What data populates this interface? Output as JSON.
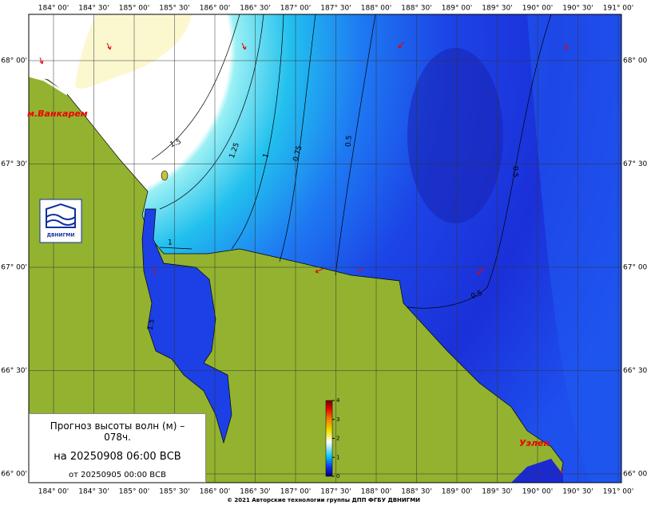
{
  "map": {
    "longitudes": [
      "184° 00'",
      "184° 30'",
      "185° 00'",
      "185° 30'",
      "186° 00'",
      "186° 30'",
      "187° 00'",
      "187° 30'",
      "188° 00'",
      "188° 30'",
      "189° 00'",
      "189° 30'",
      "190° 00'",
      "190° 30'",
      "191° 00'"
    ],
    "latitudes": [
      "68° 00'",
      "67° 30'",
      "67° 00'",
      "66° 30'",
      "66° 00'"
    ],
    "contour_labels": [
      "1.5",
      "1.25",
      "1",
      "0.75",
      "0.5",
      "0.5",
      "0.5",
      "1",
      "1.5"
    ],
    "places": [
      "м.Ванкарем",
      "Уэлен"
    ],
    "logo": "ДВНИГМИ",
    "legend": {
      "title": "Прогноз высоты волн (м) – 078ч.",
      "valid": "на 20250908 06:00 ВСВ",
      "issued": "от 20250905 00:00 ВСВ"
    },
    "colorbar": {
      "ticks": [
        0,
        1,
        2,
        3,
        4
      ]
    },
    "footer": "© 2021 Авторские технологии группы ДПП ФГБУ ДВНИГМИ"
  }
}
